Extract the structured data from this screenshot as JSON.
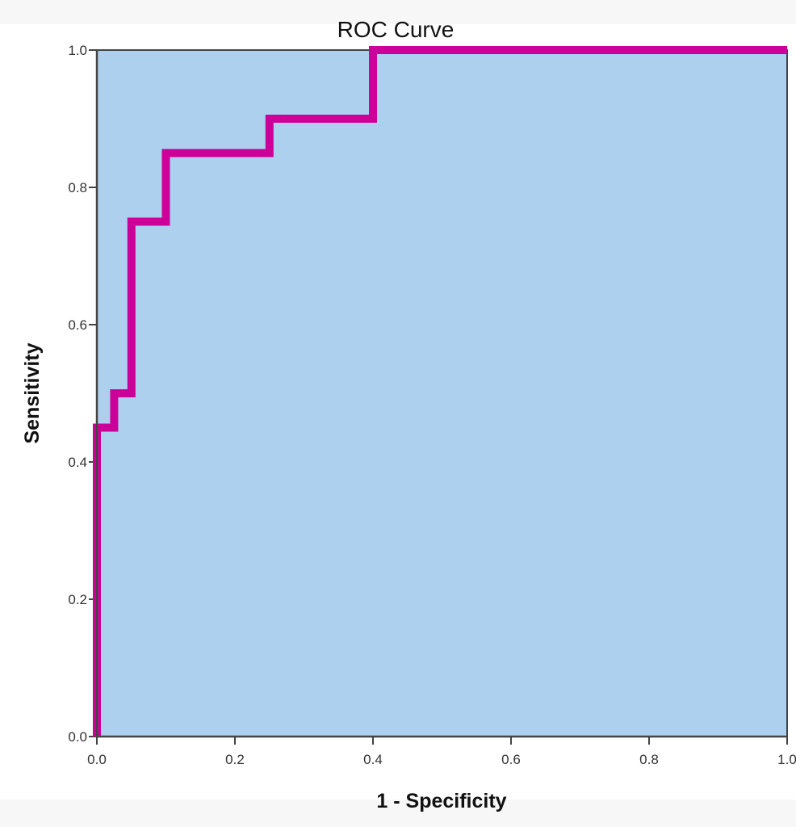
{
  "chart_data": {
    "type": "line",
    "title": "ROC Curve",
    "xlabel": "1 - Specificity",
    "ylabel": "Sensitivity",
    "xlim": [
      0,
      1
    ],
    "ylim": [
      0,
      1
    ],
    "x_ticks": [
      "0.0",
      "0.2",
      "0.4",
      "0.6",
      "0.8",
      "1.0"
    ],
    "y_ticks": [
      "0.0",
      "0.2",
      "0.4",
      "0.6",
      "0.8",
      "1.0"
    ],
    "grid": false,
    "legend": null,
    "series": [
      {
        "name": "ROC",
        "step": true,
        "color": "#cc0099",
        "x": [
          0.0,
          0.0,
          0.025,
          0.025,
          0.05,
          0.05,
          0.1,
          0.1,
          0.25,
          0.25,
          0.4,
          0.4,
          1.0
        ],
        "y": [
          0.0,
          0.45,
          0.45,
          0.5,
          0.5,
          0.75,
          0.75,
          0.85,
          0.85,
          0.9,
          0.9,
          1.0,
          1.0
        ]
      }
    ],
    "colors": {
      "plot_background": "#acd0ee",
      "curve": "#cc0099",
      "axis": "#444444"
    }
  }
}
